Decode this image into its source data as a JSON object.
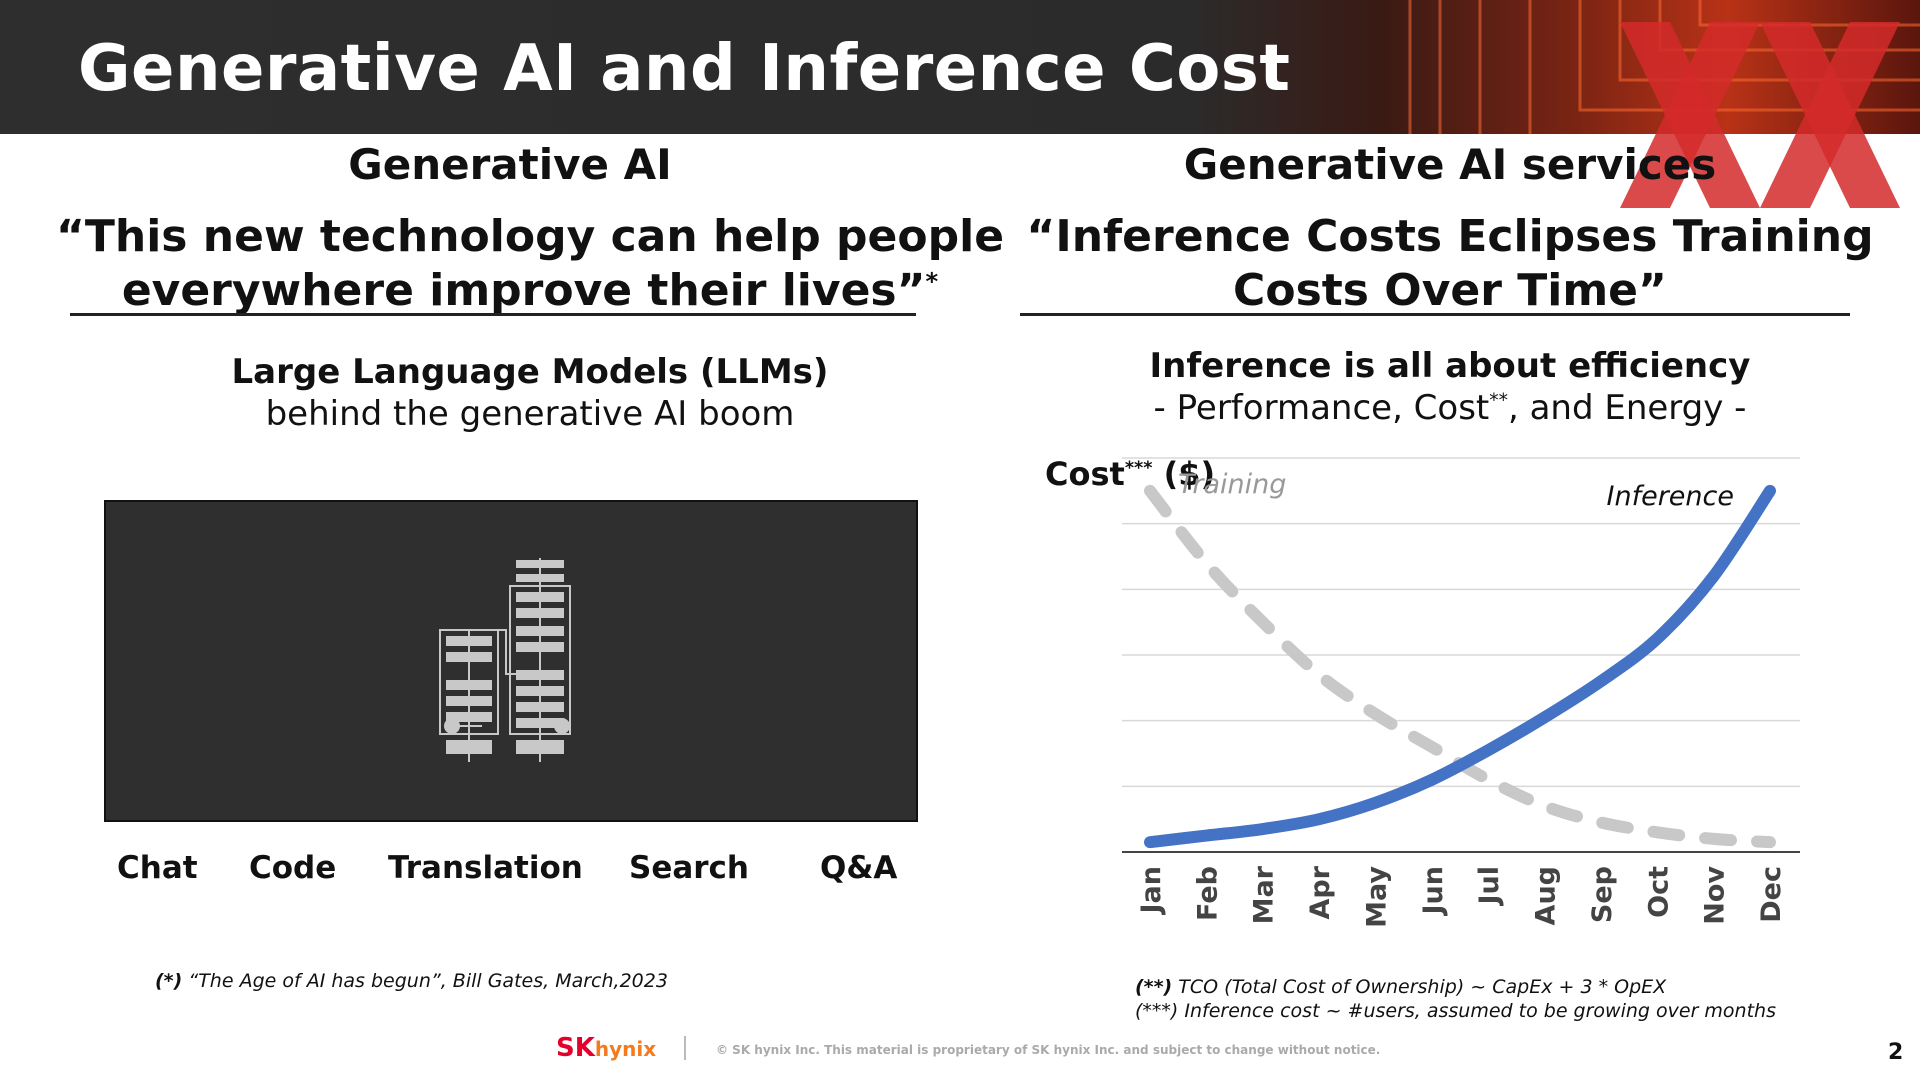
{
  "header": {
    "title": "Generative AI and Inference Cost"
  },
  "left": {
    "heading": "Generative AI",
    "quote_line1": "“This new technology can help people",
    "quote_line2": "everywhere improve their lives”",
    "quote_mark": "*",
    "sub_bold": "Large Language Models (LLMs)",
    "sub_regular": "behind the generative AI boom",
    "apps": [
      "Chat",
      "Code",
      "Translation",
      "Search",
      "Q&A"
    ],
    "footnote_mark": "(*)",
    "footnote_text": " “The Age of AI has begun”, Bill Gates, March,2023"
  },
  "right": {
    "heading": "Generative AI services",
    "quote_line1": "“Inference Costs Eclipses Training",
    "quote_line2": "Costs Over Time”",
    "sub_bold": "Inference is all about efficiency",
    "sub_regular_a": "- Performance, Cost",
    "sub_regular_sup": "**",
    "sub_regular_b": ", and Energy -",
    "footnote1_mark": "(**)",
    "footnote1_text": " TCO (Total Cost of Ownership) ~ CapEx + 3 * OpEX",
    "footnote2_mark": "(***)",
    "footnote2_text": " Inference cost ~ #users, assumed to be growing over months"
  },
  "chart_data": {
    "type": "line",
    "ylabel": "Cost",
    "ylabel_sup": "***",
    "ylabel_unit": " ($)",
    "categories": [
      "Jan",
      "Feb",
      "Mar",
      "Apr",
      "May",
      "Jun",
      "Jul",
      "Aug",
      "Sep",
      "Oct",
      "Nov",
      "Dec"
    ],
    "ylim": [
      0,
      6
    ],
    "grid": true,
    "series": [
      {
        "name": "Training",
        "style": "dashed",
        "color": "#c8c8c8",
        "values": [
          5.5,
          4.4,
          3.5,
          2.7,
          2.1,
          1.6,
          1.1,
          0.7,
          0.45,
          0.3,
          0.2,
          0.15
        ]
      },
      {
        "name": "Inference",
        "style": "solid",
        "color": "#4472c4",
        "values": [
          0.15,
          0.25,
          0.35,
          0.5,
          0.75,
          1.1,
          1.55,
          2.05,
          2.6,
          3.25,
          4.2,
          5.5
        ]
      }
    ]
  },
  "footer": {
    "logo_sk": "SK",
    "logo_hynix": "hynix",
    "text": "© SK hynix Inc. This material is proprietary of SK hynix Inc. and subject to change without notice.",
    "page": "2"
  },
  "colors": {
    "header_bg": "#2e2e2e",
    "accent_red": "#d42a2a",
    "inference": "#4472c4",
    "training": "#c8c8c8"
  }
}
